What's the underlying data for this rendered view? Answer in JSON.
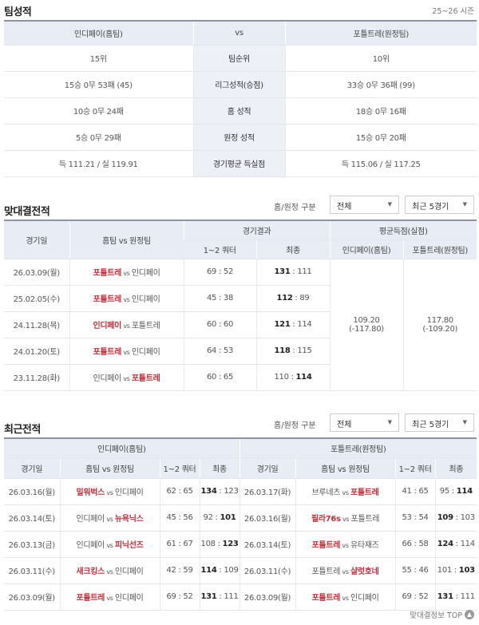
{
  "team_stats": {
    "title": "팀성적",
    "season": "25~26 시즌",
    "header": {
      "home": "인디페이(홈팀)",
      "vs": "vs",
      "away": "포틀트레(원정팀)"
    },
    "rows": [
      {
        "label": "팀순위",
        "home": "15위",
        "away": "10위"
      },
      {
        "label": "리그성적(승점)",
        "home": "15승 0무 53패 (45)",
        "away": "33승 0무 36패 (99)"
      },
      {
        "label": "홈 성적",
        "home": "10승 0무 24패",
        "away": "18승 0무 16패"
      },
      {
        "label": "원정 성적",
        "home": "5승 0무 29패",
        "away": "15승 0무 20패"
      },
      {
        "label": "경기평균 득실점",
        "home": "득 111.21 / 실 119.91",
        "away": "득 115.06 / 실 117.25"
      }
    ]
  },
  "h2h": {
    "title": "맞대결전적",
    "filter_label": "홈/원정 구분",
    "filter_value": "전체",
    "count_value": "최근 5경기",
    "headers": {
      "date": "경기일",
      "teams": "홈팀 vs 원정팀",
      "result": "경기결과",
      "q12": "1~2 쿼터",
      "final": "최종",
      "avg": "평균득점(실점)",
      "avg_home": "인디페이(홈팀)",
      "avg_away": "포틀트레(원정팀)"
    },
    "rows": [
      {
        "date": "26.03.09(월)",
        "home": "포틀트레",
        "away": "인디페이",
        "q12": [
          69,
          52
        ],
        "final": [
          131,
          111
        ]
      },
      {
        "date": "25.02.05(수)",
        "home": "포틀트레",
        "away": "인디페이",
        "q12": [
          45,
          38
        ],
        "final": [
          112,
          89
        ]
      },
      {
        "date": "24.11.28(목)",
        "home": "인디페이",
        "away": "포틀트레",
        "q12": [
          60,
          60
        ],
        "final": [
          121,
          114
        ]
      },
      {
        "date": "24.01.20(토)",
        "home": "포틀트레",
        "away": "인디페이",
        "q12": [
          64,
          53
        ],
        "final": [
          118,
          115
        ]
      },
      {
        "date": "23.11.28(화)",
        "home": "인디페이",
        "away": "포틀트레",
        "q12": [
          60,
          65
        ],
        "final": [
          110,
          114
        ]
      }
    ],
    "avg_home": {
      "score": "109.20",
      "conceded": "(-117.80)"
    },
    "avg_away": {
      "score": "117.80",
      "conceded": "(-109.20)"
    }
  },
  "recent": {
    "title": "최근전적",
    "filter_label": "홈/원정 구분",
    "filter_value": "전체",
    "count_value": "최근 5경기",
    "home_team": "인디페이(홈팀)",
    "away_team": "포틀트레(원정팀)",
    "headers": {
      "date": "경기일",
      "teams": "홈팀 vs 원정팀",
      "q12": "1~2 쿼터",
      "final": "최종"
    },
    "home_rows": [
      {
        "date": "26.03.16(월)",
        "home": "밀워벅스",
        "away": "인디페이",
        "q12": [
          62,
          65
        ],
        "final": [
          134,
          123
        ]
      },
      {
        "date": "26.03.14(토)",
        "home": "인디페이",
        "away": "뉴욕닉스",
        "q12": [
          45,
          56
        ],
        "final": [
          92,
          101
        ]
      },
      {
        "date": "26.03.13(금)",
        "home": "인디페이",
        "away": "피닉선즈",
        "q12": [
          61,
          67
        ],
        "final": [
          108,
          123
        ]
      },
      {
        "date": "26.03.11(수)",
        "home": "새크킹스",
        "away": "인디페이",
        "q12": [
          42,
          59
        ],
        "final": [
          114,
          109
        ]
      },
      {
        "date": "26.03.09(월)",
        "home": "포틀트레",
        "away": "인디페이",
        "q12": [
          69,
          52
        ],
        "final": [
          131,
          111
        ]
      }
    ],
    "away_rows": [
      {
        "date": "26.03.17(화)",
        "home": "브루네츠",
        "away": "포틀트레",
        "q12": [
          41,
          65
        ],
        "final": [
          95,
          114
        ]
      },
      {
        "date": "26.03.16(월)",
        "home": "필라76s",
        "away": "포틀트레",
        "q12": [
          53,
          54
        ],
        "final": [
          109,
          103
        ]
      },
      {
        "date": "26.03.14(토)",
        "home": "포틀트레",
        "away": "유타재즈",
        "q12": [
          66,
          58
        ],
        "final": [
          124,
          114
        ]
      },
      {
        "date": "26.03.11(수)",
        "home": "포틀트레",
        "away": "샬럿호네",
        "q12": [
          55,
          46
        ],
        "final": [
          101,
          103
        ]
      },
      {
        "date": "26.03.09(월)",
        "home": "포틀트레",
        "away": "인디페이",
        "q12": [
          69,
          52
        ],
        "final": [
          131,
          111
        ]
      }
    ]
  },
  "footer": {
    "top_link": "맞대결정보 TOP",
    "icon": "arrow-up-circle-icon"
  },
  "colors": {
    "winner": "#c0303b",
    "header_bg": "#e8ecf4"
  }
}
